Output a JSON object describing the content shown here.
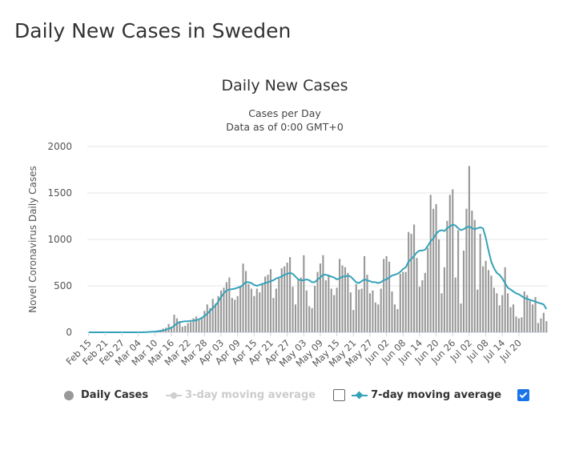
{
  "page": {
    "title": "Daily New Cases in Sweden"
  },
  "legend": {
    "daily_label": "Daily Cases",
    "avg3_label": "3-day moving average",
    "avg7_label": "7-day moving average",
    "avg3_checked": false,
    "avg7_checked": true
  },
  "colors": {
    "bars": "#999999",
    "line7": "#35a2b9",
    "disabled": "#cccccc",
    "grid": "#e6e6e6"
  },
  "chart_data": {
    "type": "bar",
    "title": "Daily New Cases",
    "subtitle": "Cases per Day",
    "subtitle2": "Data as of 0:00 GMT+0",
    "ylabel": "Novel Coronavirus Daily Cases",
    "xlabel": "",
    "ylim": [
      0,
      2000
    ],
    "yticks": [
      0,
      500,
      1000,
      1500,
      2000
    ],
    "start_date": "Feb 15",
    "xtick_labels": [
      "Feb 15",
      "Feb 21",
      "Feb 27",
      "Mar 04",
      "Mar 10",
      "Mar 16",
      "Mar 22",
      "Mar 28",
      "Apr 03",
      "Apr 09",
      "Apr 15",
      "Apr 21",
      "Apr 27",
      "May 03",
      "May 09",
      "May 15",
      "May 21",
      "May 27",
      "Jun 02",
      "Jun 08",
      "Jun 14",
      "Jun 20",
      "Jun 26",
      "Jul 02",
      "Jul 08",
      "Jul 14",
      "Jul 20"
    ],
    "xtick_step_days": 6,
    "series": [
      {
        "name": "Daily Cases",
        "type": "bar",
        "values": [
          0,
          0,
          0,
          0,
          0,
          0,
          0,
          0,
          0,
          0,
          0,
          0,
          0,
          0,
          0,
          0,
          0,
          0,
          0,
          1,
          2,
          4,
          5,
          10,
          15,
          20,
          25,
          40,
          50,
          90,
          60,
          190,
          150,
          120,
          60,
          70,
          100,
          110,
          150,
          170,
          130,
          150,
          230,
          300,
          260,
          360,
          310,
          390,
          450,
          480,
          540,
          590,
          370,
          350,
          390,
          500,
          740,
          660,
          520,
          470,
          390,
          470,
          430,
          530,
          600,
          620,
          680,
          370,
          470,
          580,
          690,
          710,
          750,
          810,
          490,
          300,
          570,
          590,
          830,
          450,
          280,
          260,
          500,
          650,
          740,
          830,
          560,
          620,
          470,
          400,
          480,
          790,
          720,
          700,
          640,
          430,
          240,
          520,
          460,
          470,
          820,
          620,
          420,
          450,
          320,
          300,
          470,
          790,
          820,
          760,
          440,
          300,
          250,
          630,
          650,
          650,
          1080,
          1060,
          1160,
          800,
          490,
          560,
          640,
          910,
          1480,
          1330,
          1380,
          1000,
          420,
          700,
          1200,
          1480,
          1540,
          590,
          1100,
          310,
          880,
          1330,
          1790,
          1310,
          1210,
          460,
          1060,
          710,
          770,
          670,
          610,
          480,
          420,
          290,
          400,
          700,
          420,
          270,
          300,
          170,
          150,
          160,
          440,
          400,
          340,
          300,
          380,
          100,
          150,
          210,
          120
        ]
      },
      {
        "name": "7-day moving average",
        "type": "line",
        "values": [
          0,
          0,
          0,
          0,
          0,
          0,
          0,
          0,
          0,
          0,
          0,
          0,
          0,
          0,
          0,
          0,
          0,
          0,
          0,
          0,
          1,
          2,
          4,
          6,
          8,
          11,
          15,
          20,
          27,
          38,
          50,
          70,
          95,
          110,
          115,
          118,
          120,
          122,
          125,
          130,
          140,
          155,
          175,
          200,
          230,
          260,
          290,
          330,
          380,
          420,
          450,
          460,
          465,
          470,
          480,
          490,
          510,
          540,
          540,
          530,
          510,
          500,
          510,
          520,
          530,
          540,
          550,
          560,
          580,
          590,
          600,
          620,
          630,
          640,
          630,
          600,
          570,
          560,
          560,
          570,
          560,
          540,
          540,
          570,
          590,
          620,
          620,
          610,
          600,
          590,
          570,
          580,
          600,
          600,
          610,
          600,
          570,
          540,
          530,
          550,
          570,
          560,
          550,
          540,
          540,
          530,
          540,
          560,
          570,
          590,
          610,
          620,
          630,
          650,
          680,
          700,
          760,
          790,
          820,
          860,
          880,
          880,
          890,
          930,
          980,
          1010,
          1060,
          1090,
          1100,
          1090,
          1120,
          1140,
          1160,
          1150,
          1120,
          1100,
          1110,
          1130,
          1140,
          1120,
          1110,
          1120,
          1130,
          1120,
          1020,
          880,
          760,
          690,
          640,
          620,
          580,
          530,
          480,
          460,
          440,
          420,
          410,
          390,
          370,
          360,
          350,
          340,
          330,
          320,
          310,
          300,
          250
        ]
      }
    ]
  }
}
